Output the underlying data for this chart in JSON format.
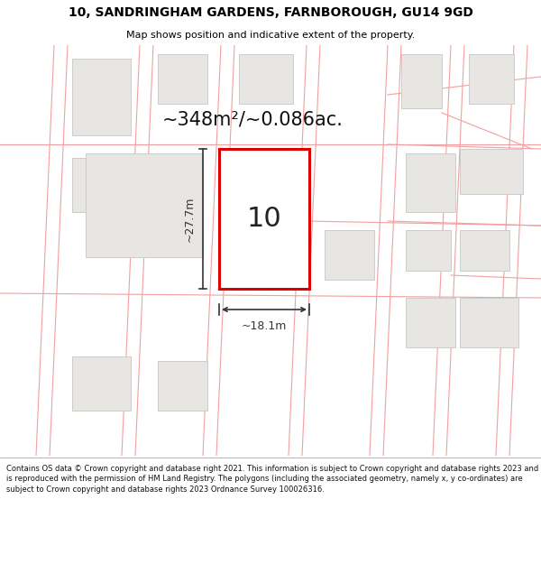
{
  "title_line1": "10, SANDRINGHAM GARDENS, FARNBOROUGH, GU14 9GD",
  "title_line2": "Map shows position and indicative extent of the property.",
  "area_text": "~348m²/~0.086ac.",
  "plot_number": "10",
  "width_label": "~18.1m",
  "height_label": "~27.7m",
  "footer_text": "Contains OS data © Crown copyright and database right 2021. This information is subject to Crown copyright and database rights 2023 and is reproduced with the permission of HM Land Registry. The polygons (including the associated geometry, namely x, y co-ordinates) are subject to Crown copyright and database rights 2023 Ordnance Survey 100026316.",
  "map_bg": "#f7f5f2",
  "plot_fill": "#ffffff",
  "plot_edge_color": "#dd0000",
  "building_fill": "#e8e6e2",
  "building_edge": "#cccccc",
  "road_line_color": "#f0a0a0",
  "measure_color": "#333333",
  "footer_bg": "#ffffff",
  "title_bg": "#ffffff",
  "title_fs1": 10,
  "title_fs2": 8,
  "area_fs": 15,
  "plot_num_fs": 22,
  "measure_fs": 9,
  "footer_fs": 6.0
}
